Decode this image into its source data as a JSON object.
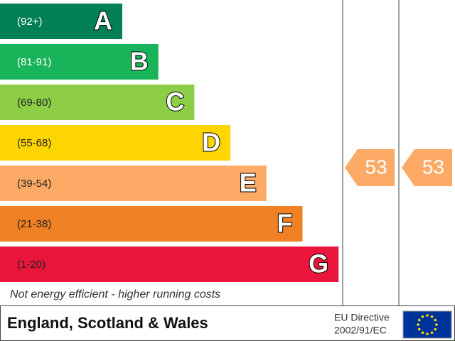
{
  "chart_data": {
    "type": "epc",
    "bands": [
      {
        "range": "(92+)",
        "letter": "A",
        "color": "#008054",
        "text_color": "#ffffff"
      },
      {
        "range": "(81-91)",
        "letter": "B",
        "color": "#19b459",
        "text_color": "#ffffff"
      },
      {
        "range": "(69-80)",
        "letter": "C",
        "color": "#8dce46",
        "text_color": "#222222"
      },
      {
        "range": "(55-68)",
        "letter": "D",
        "color": "#ffd500",
        "text_color": "#222222"
      },
      {
        "range": "(39-54)",
        "letter": "E",
        "color": "#fcaa65",
        "text_color": "#222222"
      },
      {
        "range": "(21-38)",
        "letter": "F",
        "color": "#ef8023",
        "text_color": "#222222"
      },
      {
        "range": "(1-20)",
        "letter": "G",
        "color": "#e9153b",
        "text_color": "#222222"
      }
    ],
    "current": 53,
    "potential": 53,
    "rating_color": "#fcaa65",
    "footnote": "Not energy efficient - higher running costs",
    "region": "England, Scotland & Wales",
    "directive": [
      "EU Directive",
      "2002/91/EC"
    ]
  }
}
